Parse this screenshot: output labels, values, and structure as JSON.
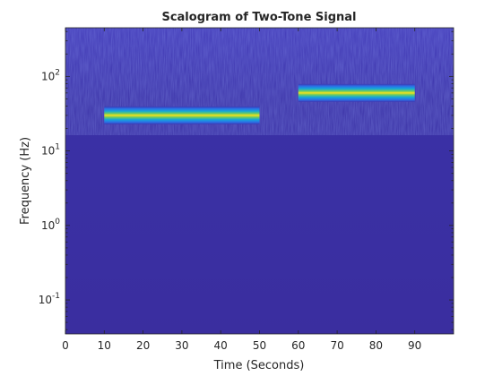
{
  "chart_data": {
    "type": "heatmap",
    "title": "Scalogram of Two-Tone Signal",
    "xlabel": "Time (Seconds)",
    "ylabel": "Frequency (Hz)",
    "xlim": [
      0,
      100
    ],
    "ylim": [
      0.035,
      450
    ],
    "yscale": "log",
    "grid": false,
    "x_ticks": [
      0,
      10,
      20,
      30,
      40,
      50,
      60,
      70,
      80,
      90
    ],
    "y_ticks": [
      {
        "value": 0.1,
        "base": "10",
        "exponent": "-1"
      },
      {
        "value": 1,
        "base": "10",
        "exponent": "0"
      },
      {
        "value": 10,
        "base": "10",
        "exponent": "1"
      },
      {
        "value": 100,
        "base": "10",
        "exponent": "2"
      }
    ],
    "background_color": "#3b2fa0",
    "tones": [
      {
        "t_start": 10,
        "t_end": 50,
        "frequency": 30
      },
      {
        "t_start": 60,
        "t_end": 90,
        "frequency": 60
      }
    ]
  }
}
